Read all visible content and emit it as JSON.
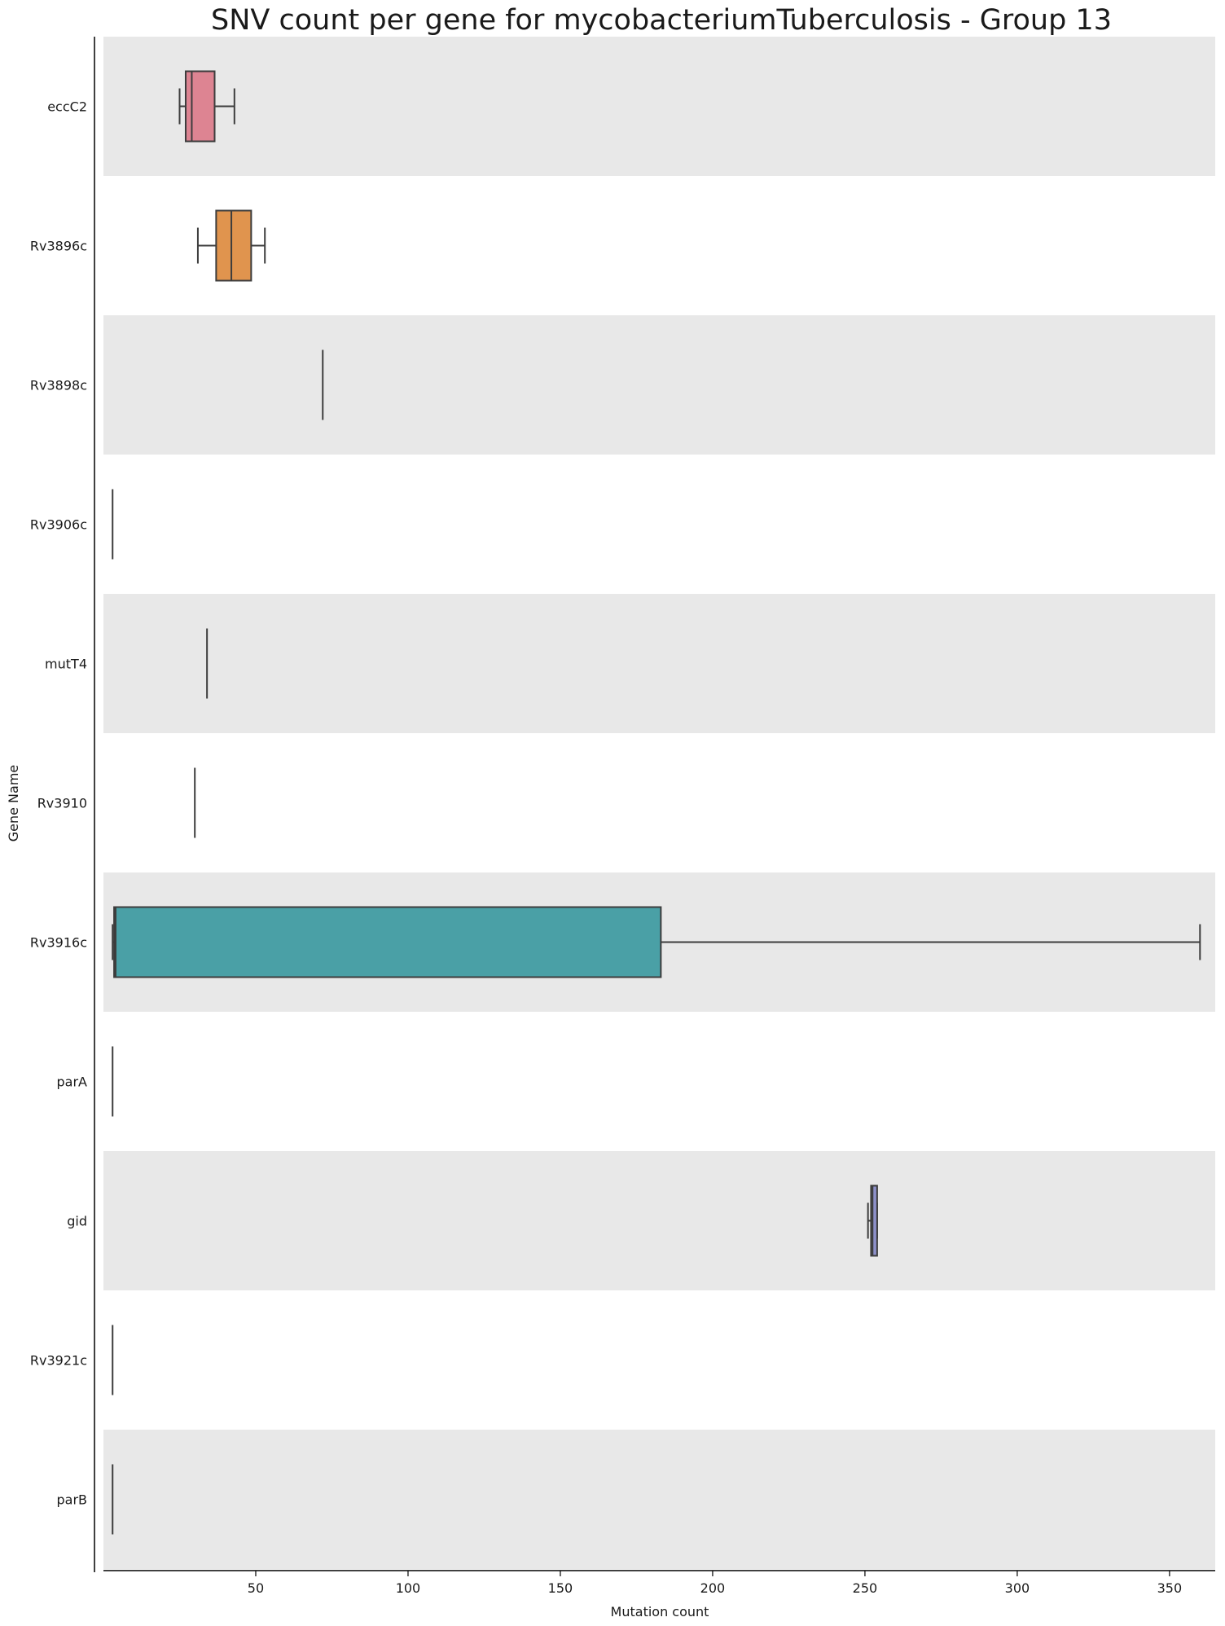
{
  "chart_data": {
    "type": "boxplot",
    "orientation": "horizontal",
    "title": "SNV count per gene for mycobacteriumTuberculosis - Group 13",
    "xlabel": "Mutation count",
    "ylabel": "Gene Name",
    "xlim": [
      0,
      365
    ],
    "xticks": [
      50,
      100,
      150,
      200,
      250,
      300,
      350
    ],
    "band_colors": [
      "#e8e8e8",
      "#ffffff"
    ],
    "categories": [
      "eccC2",
      "Rv3896c",
      "Rv3898c",
      "Rv3906c",
      "mutT4",
      "Rv3910",
      "Rv3916c",
      "parA",
      "gid",
      "Rv3921c",
      "parB"
    ],
    "boxes": [
      {
        "gene": "eccC2",
        "whislo": 25,
        "q1": 27,
        "med": 29,
        "q3": 36.5,
        "whishi": 43,
        "color": "#dd8492"
      },
      {
        "gene": "Rv3896c",
        "whislo": 31,
        "q1": 37,
        "med": 42,
        "q3": 48.5,
        "whishi": 53,
        "color": "#e0944e"
      },
      {
        "gene": "Rv3898c",
        "whislo": 72,
        "q1": 72,
        "med": 72,
        "q3": 72,
        "whishi": 72,
        "color": "#b5a24a"
      },
      {
        "gene": "Rv3906c",
        "whislo": 3,
        "q1": 3,
        "med": 3,
        "q3": 3,
        "whishi": 3,
        "color": "#8fa64f"
      },
      {
        "gene": "mutT4",
        "whislo": 34,
        "q1": 34,
        "med": 34,
        "q3": 34,
        "whishi": 34,
        "color": "#5daa6b"
      },
      {
        "gene": "Rv3910",
        "whislo": 30,
        "q1": 30,
        "med": 30,
        "q3": 30,
        "whishi": 30,
        "color": "#4fa896"
      },
      {
        "gene": "Rv3916c",
        "whislo": 3,
        "q1": 3.5,
        "med": 4,
        "q3": 183,
        "whishi": 360,
        "color": "#4aa0a6"
      },
      {
        "gene": "parA",
        "whislo": 3,
        "q1": 3,
        "med": 3,
        "q3": 3,
        "whishi": 3,
        "color": "#4f9cc0"
      },
      {
        "gene": "gid",
        "whislo": 251,
        "q1": 252,
        "med": 252.5,
        "q3": 254,
        "whishi": 254,
        "color": "#8d90c9"
      },
      {
        "gene": "Rv3921c",
        "whislo": 3,
        "q1": 3,
        "med": 3,
        "q3": 3,
        "whishi": 3,
        "color": "#b58ccf"
      },
      {
        "gene": "parB",
        "whislo": 3,
        "q1": 3,
        "med": 3,
        "q3": 3,
        "whishi": 3,
        "color": "#d884b6"
      }
    ]
  }
}
